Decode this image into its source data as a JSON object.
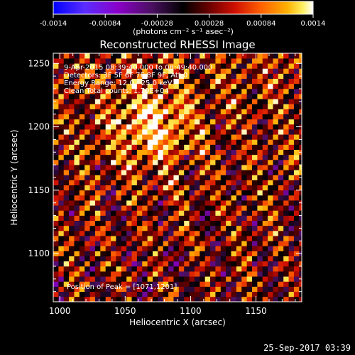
{
  "colorbar": {
    "tick_labels": [
      "-0.0014",
      "-0.00084",
      "-0.00028",
      "0.00028",
      "0.00084",
      "0.0014"
    ],
    "range": [
      -0.0014,
      0.0014
    ],
    "unit_label": "(photons cm⁻² s⁻¹ asec⁻²)",
    "colors": [
      "#0000ff",
      "#5a2dff",
      "#8a00c8",
      "#4a1060",
      "#000000",
      "#6a0000",
      "#d01000",
      "#ff6000",
      "#ffb000",
      "#fff060",
      "#ffffff"
    ]
  },
  "chart_data": {
    "type": "heatmap",
    "title": "Reconstructed RHESSI Image",
    "xlabel": "Heliocentric X (arcsec)",
    "ylabel": "Heliocentric Y (arcsec)",
    "xlim": [
      995,
      1185
    ],
    "ylim": [
      1062,
      1258
    ],
    "x_ticks": [
      1000,
      1050,
      1100,
      1150
    ],
    "y_ticks": [
      1100,
      1150,
      1200,
      1250
    ],
    "grid": false,
    "annotations": [
      "9-Apr-2015 08:39:40.000 to 08:49:40.000",
      "Detectors: 3F 5F 6F 7F 8F 9F, Att 0",
      "Energy Range: 12.0 - 25.0 keV",
      "Clean    Total counts: 1.70E+04"
    ],
    "peak_label": "Position of Peak = [1071,1201]",
    "peak": [
      1071,
      1201
    ],
    "pixel_size_arcsec": 4,
    "pattern": "diagonal stripes of alternating positive (red-yellow) and negative (purple-blue) flux across the field, brightest near the peak"
  },
  "footer": {
    "timestamp": "25-Sep-2017 03:39"
  }
}
